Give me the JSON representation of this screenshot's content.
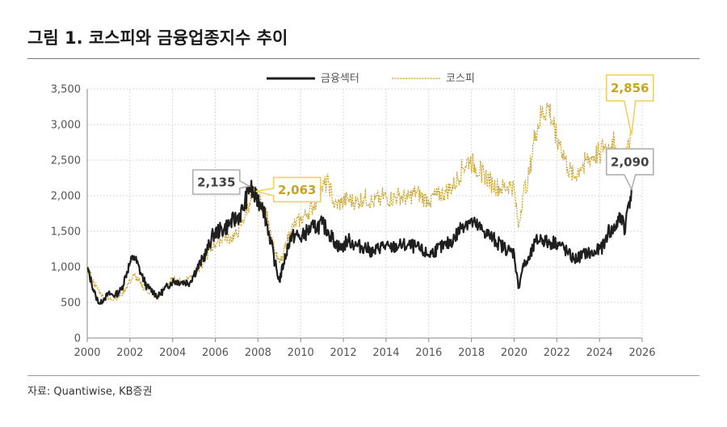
{
  "title": "그림 1. 코스피와 금융업종지수 추이",
  "source": "자료: Quantiwise, KB증권",
  "colors": {
    "finance": "#1f1f1f",
    "kospi": "#c9a227",
    "kospi_callout_border": "#f0d060",
    "kospi_callout_text": "#c9a227",
    "finance_callout_border": "#b0b0b0",
    "finance_callout_text": "#444444"
  },
  "chart_data": {
    "type": "line",
    "xlim": [
      2000,
      2026
    ],
    "ylim": [
      0,
      3500
    ],
    "x_ticks": [
      "2000",
      "2002",
      "2004",
      "2006",
      "2008",
      "2010",
      "2012",
      "2014",
      "2016",
      "2018",
      "2020",
      "2022",
      "2024",
      "2026"
    ],
    "y_ticks": [
      "0",
      "500",
      "1,000",
      "1,500",
      "2,000",
      "2,500",
      "3,000",
      "3,500"
    ],
    "grid": true,
    "legend_position": "top-center",
    "series": [
      {
        "name": "금융섹터",
        "style": "solid",
        "x": [
          2000.0,
          2000.2,
          2000.4,
          2000.6,
          2000.8,
          2001.0,
          2001.3,
          2001.6,
          2001.8,
          2002.0,
          2002.2,
          2002.5,
          2002.8,
          2003.1,
          2003.3,
          2003.6,
          2004.0,
          2004.4,
          2004.8,
          2005.0,
          2005.3,
          2005.6,
          2005.9,
          2006.1,
          2006.4,
          2006.7,
          2007.0,
          2007.3,
          2007.6,
          2007.9,
          2008.2,
          2008.5,
          2008.8,
          2009.0,
          2009.2,
          2009.5,
          2009.8,
          2010.0,
          2010.3,
          2010.6,
          2011.0,
          2011.3,
          2011.6,
          2011.9,
          2012.2,
          2012.6,
          2013.0,
          2013.4,
          2013.8,
          2014.2,
          2014.6,
          2015.0,
          2015.4,
          2015.8,
          2016.0,
          2016.4,
          2016.8,
          2017.2,
          2017.6,
          2017.9,
          2018.2,
          2018.6,
          2019.0,
          2019.4,
          2019.8,
          2020.0,
          2020.2,
          2020.4,
          2020.7,
          2021.0,
          2021.3,
          2021.6,
          2021.9,
          2022.2,
          2022.5,
          2022.8,
          2023.1,
          2023.4,
          2023.7,
          2024.0,
          2024.2,
          2024.4,
          2024.6,
          2024.9,
          2025.1,
          2025.2,
          2025.3,
          2025.5
        ],
        "y": [
          980,
          780,
          580,
          480,
          560,
          620,
          600,
          680,
          880,
          1050,
          1150,
          920,
          720,
          650,
          580,
          680,
          800,
          790,
          780,
          900,
          1050,
          1220,
          1450,
          1500,
          1530,
          1620,
          1680,
          1800,
          2135,
          1950,
          1900,
          1500,
          1050,
          800,
          1050,
          1400,
          1450,
          1400,
          1500,
          1550,
          1600,
          1500,
          1350,
          1250,
          1380,
          1300,
          1280,
          1200,
          1300,
          1260,
          1300,
          1300,
          1280,
          1200,
          1170,
          1250,
          1300,
          1400,
          1600,
          1650,
          1580,
          1500,
          1400,
          1300,
          1220,
          1200,
          700,
          1000,
          1100,
          1350,
          1400,
          1330,
          1350,
          1300,
          1200,
          1100,
          1150,
          1200,
          1180,
          1250,
          1300,
          1500,
          1500,
          1650,
          1700,
          1480,
          1800,
          2090
        ]
      },
      {
        "name": "코스피",
        "style": "dashed",
        "x": [
          2000.0,
          2000.2,
          2000.4,
          2000.6,
          2000.8,
          2001.0,
          2001.3,
          2001.6,
          2001.8,
          2002.0,
          2002.2,
          2002.5,
          2002.8,
          2003.1,
          2003.3,
          2003.6,
          2004.0,
          2004.4,
          2004.8,
          2005.0,
          2005.3,
          2005.6,
          2005.9,
          2006.1,
          2006.4,
          2006.7,
          2007.0,
          2007.3,
          2007.6,
          2007.9,
          2008.2,
          2008.5,
          2008.8,
          2009.0,
          2009.2,
          2009.5,
          2009.8,
          2010.0,
          2010.3,
          2010.6,
          2011.0,
          2011.3,
          2011.6,
          2011.9,
          2012.2,
          2012.6,
          2013.0,
          2013.4,
          2013.8,
          2014.2,
          2014.6,
          2015.0,
          2015.4,
          2015.8,
          2016.0,
          2016.4,
          2016.8,
          2017.2,
          2017.6,
          2017.9,
          2018.2,
          2018.6,
          2019.0,
          2019.4,
          2019.8,
          2020.0,
          2020.2,
          2020.4,
          2020.7,
          2021.0,
          2021.3,
          2021.6,
          2021.9,
          2022.2,
          2022.5,
          2022.8,
          2023.1,
          2023.4,
          2023.7,
          2024.0,
          2024.2,
          2024.4,
          2024.6,
          2024.9,
          2025.1,
          2025.2,
          2025.3,
          2025.5
        ],
        "y": [
          1000,
          850,
          720,
          640,
          560,
          540,
          560,
          600,
          700,
          800,
          880,
          760,
          660,
          600,
          560,
          700,
          820,
          780,
          860,
          900,
          1000,
          1150,
          1300,
          1350,
          1420,
          1400,
          1450,
          1650,
          1900,
          2063,
          1850,
          1650,
          1200,
          1050,
          1200,
          1500,
          1620,
          1650,
          1750,
          1850,
          2100,
          2180,
          1850,
          1900,
          1950,
          1900,
          1980,
          1900,
          2000,
          1950,
          2000,
          1950,
          2050,
          1950,
          1950,
          2000,
          2050,
          2150,
          2400,
          2500,
          2400,
          2300,
          2150,
          2100,
          2150,
          2100,
          1550,
          2000,
          2300,
          2900,
          3150,
          3250,
          2950,
          2700,
          2400,
          2250,
          2400,
          2500,
          2550,
          2600,
          2700,
          2650,
          2800,
          2550,
          2500,
          2450,
          2700,
          2856
        ]
      }
    ],
    "annotations": [
      {
        "label": "2,135",
        "series": "금융섹터",
        "x": 2007.6,
        "y": 2135
      },
      {
        "label": "2,063",
        "series": "코스피",
        "x": 2007.9,
        "y": 2063
      },
      {
        "label": "2,856",
        "series": "코스피",
        "x": 2025.5,
        "y": 2856
      },
      {
        "label": "2,090",
        "series": "금융섹터",
        "x": 2025.5,
        "y": 2090
      }
    ]
  }
}
